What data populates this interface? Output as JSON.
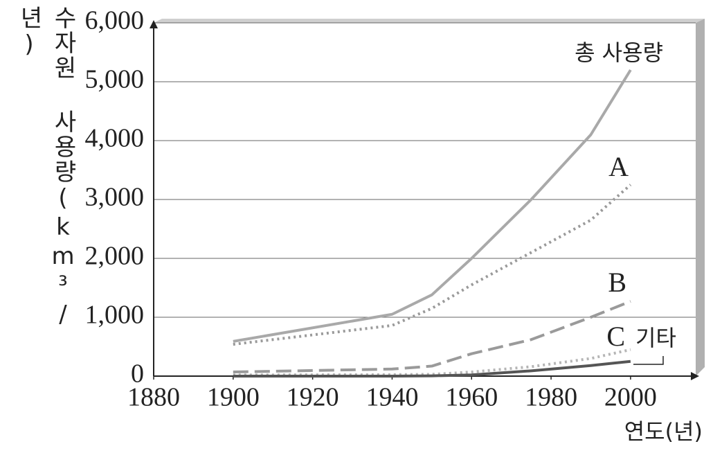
{
  "chart_data": {
    "type": "line",
    "y_label": "수자원 사용량(km³/년)",
    "x_label": "연도(년)",
    "x": [
      1900,
      1940,
      1950,
      1960,
      1975,
      1990,
      2000
    ],
    "series": [
      {
        "name": "총 사용량",
        "color": "#a9a9a9",
        "style": "solid",
        "values": [
          590,
          1050,
          1380,
          2000,
          3000,
          4100,
          5200
        ]
      },
      {
        "name": "A",
        "color": "#9a9a9a",
        "style": "dotted",
        "values": [
          540,
          860,
          1150,
          1550,
          2100,
          2650,
          3250
        ]
      },
      {
        "name": "B",
        "color": "#9a9a9a",
        "style": "dashed",
        "values": [
          70,
          120,
          170,
          380,
          620,
          1000,
          1270
        ]
      },
      {
        "name": "C",
        "color": "#b5b5b5",
        "style": "dotted",
        "values": [
          20,
          25,
          30,
          70,
          160,
          300,
          450
        ]
      },
      {
        "name": "기타",
        "color": "#555555",
        "style": "solid",
        "values": [
          0,
          0,
          5,
          20,
          90,
          180,
          250
        ]
      }
    ],
    "xlim": [
      1880,
      2015
    ],
    "xticks": [
      1880,
      1900,
      1920,
      1940,
      1960,
      1980,
      2000
    ],
    "ylim": [
      0,
      6000
    ],
    "yticks": [
      0,
      {
        "value": 1000,
        "label": "1,000"
      },
      {
        "value": 2000,
        "label": "2,000"
      },
      {
        "value": 3000,
        "label": "3,000"
      },
      {
        "value": 4000,
        "label": "4,000"
      },
      {
        "value": 5000,
        "label": "5,000"
      },
      {
        "value": 6000,
        "label": "6,000"
      }
    ],
    "grid": true
  }
}
